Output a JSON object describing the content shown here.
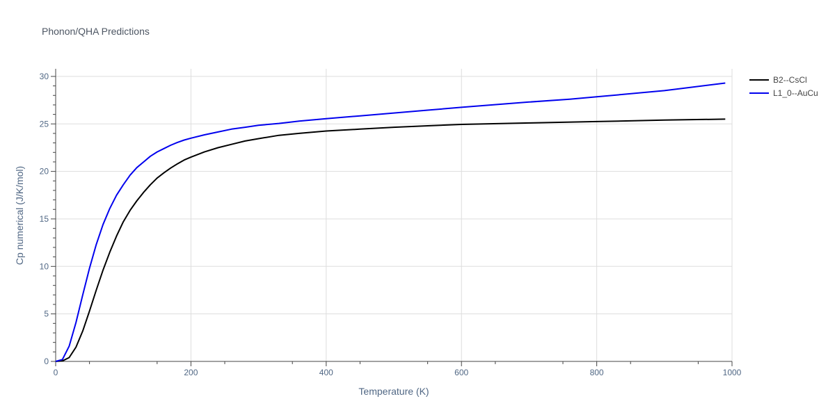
{
  "chart_data": {
    "type": "line",
    "title": "Phonon/QHA Predictions",
    "xlabel": "Temperature (K)",
    "ylabel": "Cp numerical (J/K/mol)",
    "xlim": [
      0,
      1000
    ],
    "ylim": [
      0,
      30.8
    ],
    "xticks": [
      0,
      200,
      400,
      600,
      800,
      1000
    ],
    "yticks": [
      0,
      5,
      10,
      15,
      20,
      25,
      30
    ],
    "grid": true,
    "legend_position": "top-right",
    "series": [
      {
        "name": "B2--CsCl",
        "color": "#000000",
        "x": [
          0,
          10,
          20,
          30,
          40,
          50,
          60,
          70,
          80,
          90,
          100,
          110,
          120,
          130,
          140,
          150,
          160,
          170,
          180,
          190,
          200,
          220,
          240,
          260,
          280,
          300,
          330,
          360,
          400,
          450,
          500,
          550,
          600,
          700,
          800,
          900,
          990
        ],
        "y": [
          0,
          0.05,
          0.4,
          1.5,
          3.2,
          5.3,
          7.5,
          9.6,
          11.5,
          13.2,
          14.7,
          15.9,
          16.9,
          17.8,
          18.6,
          19.3,
          19.85,
          20.35,
          20.8,
          21.2,
          21.5,
          22.05,
          22.5,
          22.85,
          23.2,
          23.45,
          23.8,
          24.0,
          24.25,
          24.45,
          24.65,
          24.8,
          24.95,
          25.1,
          25.25,
          25.4,
          25.5
        ]
      },
      {
        "name": "L1_0--AuCu",
        "color": "#0000ee",
        "x": [
          0,
          10,
          20,
          30,
          40,
          50,
          60,
          70,
          80,
          90,
          100,
          110,
          120,
          130,
          140,
          150,
          160,
          170,
          180,
          190,
          200,
          220,
          240,
          260,
          280,
          300,
          330,
          360,
          400,
          450,
          500,
          550,
          600,
          700,
          760,
          800,
          900,
          990
        ],
        "y": [
          0,
          0.2,
          1.6,
          4.1,
          7.0,
          9.8,
          12.3,
          14.4,
          16.1,
          17.5,
          18.6,
          19.6,
          20.4,
          21.0,
          21.6,
          22.05,
          22.4,
          22.75,
          23.05,
          23.3,
          23.5,
          23.85,
          24.15,
          24.45,
          24.65,
          24.85,
          25.05,
          25.3,
          25.55,
          25.85,
          26.15,
          26.45,
          26.75,
          27.3,
          27.6,
          27.85,
          28.5,
          29.3
        ]
      }
    ]
  }
}
